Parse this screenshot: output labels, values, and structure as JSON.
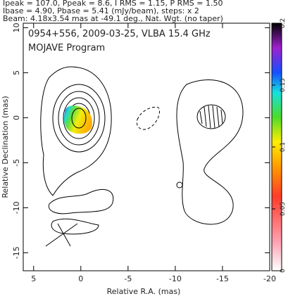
{
  "chart_data": {
    "type": "contour",
    "header": [
      "Ipeak = 107.0, Ppeak = 8.6, I RMS = 1.15, P RMS = 1.50",
      "Ibase = 4.90, Pbase = 5.41 (mJy/beam), steps: x 2",
      "Beam: 4.18x3.54 mas at -49.1 deg., Nat. Wgt. (no taper)"
    ],
    "title": "0954+556, 2009-03-25, VLBA 15.4 GHz",
    "subtitle": "MOJAVE Program",
    "xlabel": "Relative R.A. (mas)",
    "ylabel": "Relative Declination (mas)",
    "xlim": [
      6.1,
      -20
    ],
    "ylim": [
      -17,
      10.5
    ],
    "xticks": [
      5,
      0,
      -5,
      -10,
      -15,
      -20
    ],
    "yticks": [
      10,
      5,
      0,
      -5,
      -10,
      -15
    ],
    "colorbar": {
      "lim": [
        0,
        0.2
      ],
      "ticks": [
        0,
        0.05,
        0.1,
        0.15,
        0.2
      ]
    }
  }
}
